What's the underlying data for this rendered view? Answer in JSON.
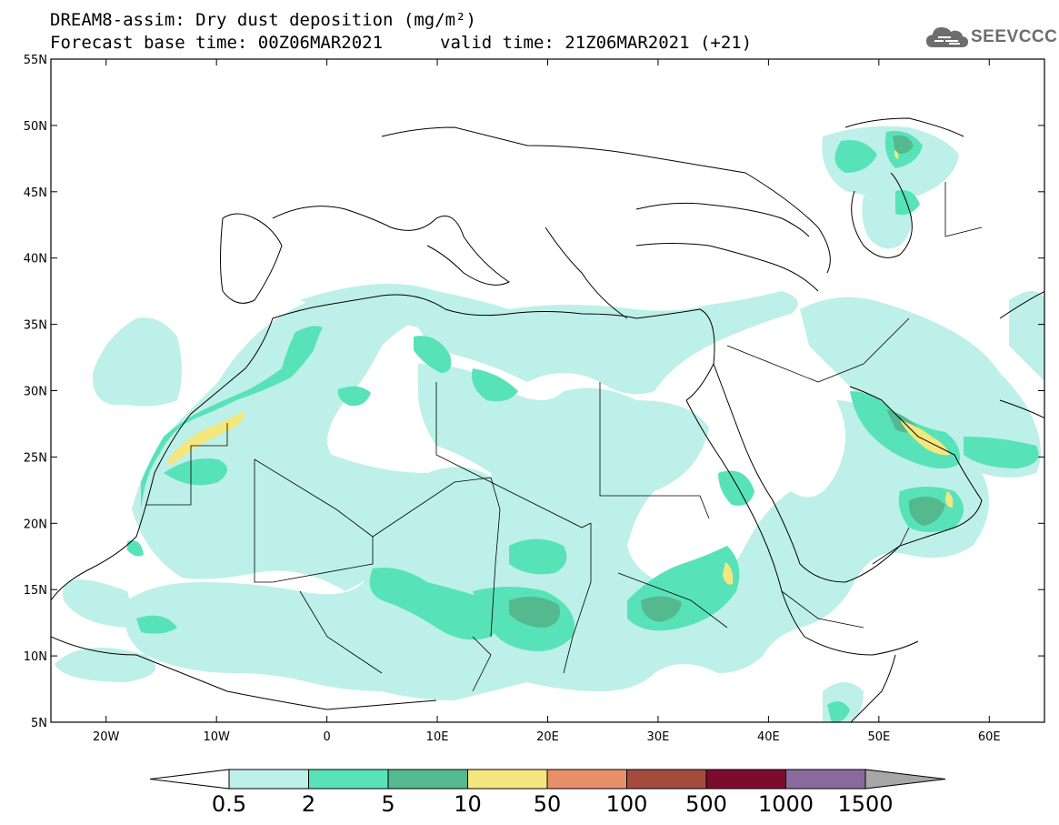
{
  "header": {
    "title_line1": "DREAM8-assim: Dry dust deposition (mg/m²)",
    "base_time": "Forecast base time: 00Z06MAR2021",
    "valid_time": "valid time: 21Z06MAR2021 (+21)"
  },
  "logo": {
    "text": "SEEVCCC",
    "icon": "cloud-icon",
    "color": "#6d6d6d"
  },
  "map": {
    "lon_range": [
      -25,
      65
    ],
    "lat_range": [
      5,
      55
    ],
    "lat_ticks": [
      "5N",
      "10N",
      "15N",
      "20N",
      "25N",
      "30N",
      "35N",
      "40N",
      "45N",
      "50N",
      "55N"
    ],
    "lon_ticks": [
      "20W",
      "10W",
      "0",
      "10E",
      "20E",
      "30E",
      "40E",
      "50E",
      "60E"
    ]
  },
  "colorbar": {
    "labels": [
      "0.5",
      "2",
      "5",
      "10",
      "50",
      "100",
      "500",
      "1000",
      "1500"
    ],
    "colors": [
      "#bdf0e8",
      "#58e2b8",
      "#55b98f",
      "#f4e77e",
      "#e9906b",
      "#a54c3f",
      "#7d0b2e",
      "#8a6a9a"
    ],
    "arrow_left_color": "#ffffff",
    "arrow_right_color": "#a7a7a7"
  }
}
